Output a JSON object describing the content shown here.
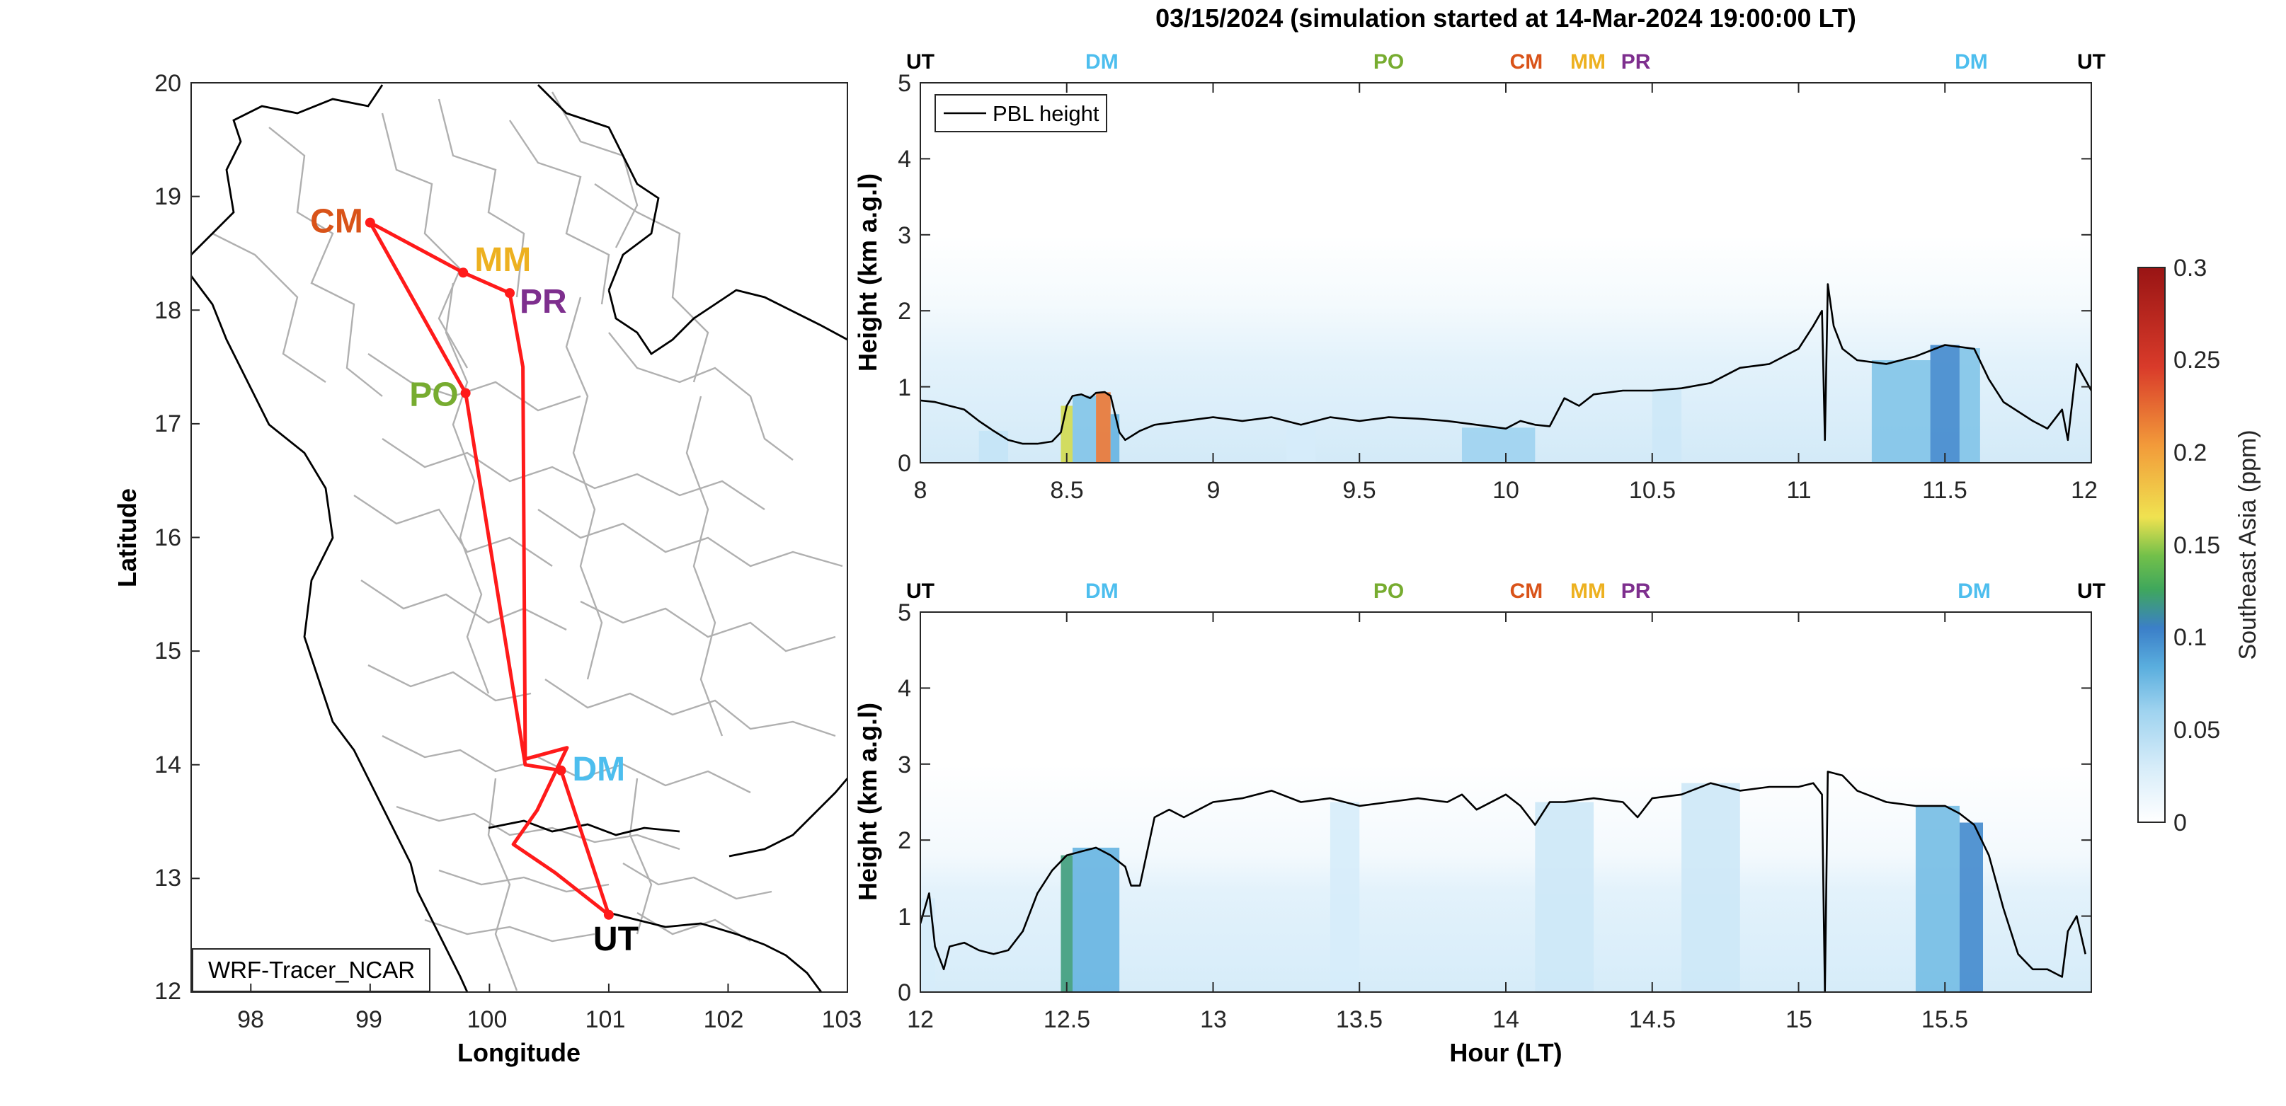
{
  "figure": {
    "title": "03/15/2024 (simulation started at 14-Mar-2024 19:00:00 LT)"
  },
  "colors": {
    "route": "#ff1a1a",
    "CM": "#d95319",
    "MM": "#edb120",
    "PR": "#7e2f8e",
    "PO": "#77ac30",
    "DM": "#4dbeee",
    "UT": "#000000",
    "colormap": [
      "#ffffff",
      "#d6ecf9",
      "#9fd3ef",
      "#5aaede",
      "#3b7fc8",
      "#3fa75c",
      "#72c04a",
      "#f0e250",
      "#f29a3a",
      "#d93b2a",
      "#991414"
    ]
  },
  "map": {
    "xlabel": "Longitude",
    "ylabel": "Latitude",
    "xticks": [
      "98",
      "99",
      "100",
      "101",
      "102",
      "103"
    ],
    "yticks": [
      "20",
      "19",
      "18",
      "17",
      "16",
      "15",
      "14",
      "13",
      "12"
    ],
    "model_label": "WRF-Tracer_NCAR",
    "stations": [
      {
        "code": "CM",
        "lon": 99.0,
        "lat": 18.77
      },
      {
        "code": "MM",
        "lon": 99.78,
        "lat": 18.33
      },
      {
        "code": "PR",
        "lon": 100.17,
        "lat": 18.15
      },
      {
        "code": "PO",
        "lon": 99.8,
        "lat": 17.27
      },
      {
        "code": "DM",
        "lon": 100.6,
        "lat": 13.95
      },
      {
        "code": "UT",
        "lon": 101.0,
        "lat": 12.68
      }
    ],
    "route": [
      [
        101.0,
        12.68
      ],
      [
        100.6,
        13.95
      ],
      [
        100.3,
        14.0
      ],
      [
        99.8,
        17.27
      ],
      [
        99.0,
        18.77
      ],
      [
        99.78,
        18.33
      ],
      [
        100.17,
        18.15
      ],
      [
        100.28,
        17.5
      ],
      [
        100.3,
        14.05
      ],
      [
        100.65,
        14.15
      ],
      [
        100.4,
        13.6
      ],
      [
        100.2,
        13.3
      ],
      [
        100.55,
        13.05
      ],
      [
        101.0,
        12.68
      ]
    ]
  },
  "chart_data": [
    {
      "type": "heatmap",
      "title": "",
      "xlabel": "",
      "ylabel": "Height (km a.g.l)",
      "xlim": [
        8,
        12
      ],
      "ylim": [
        0,
        5
      ],
      "xticks": [
        "8",
        "8.5",
        "9",
        "9.5",
        "10",
        "10.5",
        "11",
        "11.5",
        "12"
      ],
      "yticks": [
        "5",
        "4",
        "3",
        "2",
        "1",
        "0"
      ],
      "legend": {
        "label": "PBL height",
        "position": "top-left"
      },
      "location_markers": [
        {
          "code": "UT",
          "hour": 8.0
        },
        {
          "code": "DM",
          "hour": 8.62
        },
        {
          "code": "PO",
          "hour": 9.6
        },
        {
          "code": "CM",
          "hour": 10.07
        },
        {
          "code": "MM",
          "hour": 10.3
        },
        {
          "code": "PR",
          "hour": 10.41
        },
        {
          "code": "DM",
          "hour": 11.59
        },
        {
          "code": "UT",
          "hour": 11.97
        }
      ],
      "pbl_series": {
        "name": "PBL height",
        "x": [
          8.0,
          8.05,
          8.1,
          8.15,
          8.2,
          8.25,
          8.3,
          8.35,
          8.4,
          8.45,
          8.48,
          8.5,
          8.52,
          8.55,
          8.58,
          8.6,
          8.63,
          8.65,
          8.68,
          8.7,
          8.75,
          8.8,
          8.9,
          9.0,
          9.1,
          9.2,
          9.3,
          9.4,
          9.5,
          9.6,
          9.7,
          9.8,
          9.9,
          10.0,
          10.05,
          10.1,
          10.15,
          10.2,
          10.25,
          10.3,
          10.4,
          10.5,
          10.6,
          10.7,
          10.8,
          10.9,
          11.0,
          11.05,
          11.08,
          11.09,
          11.1,
          11.12,
          11.15,
          11.2,
          11.3,
          11.4,
          11.5,
          11.6,
          11.65,
          11.7,
          11.8,
          11.85,
          11.9,
          11.92,
          11.95,
          12.0
        ],
        "y": [
          0.82,
          0.8,
          0.75,
          0.7,
          0.55,
          0.42,
          0.3,
          0.25,
          0.25,
          0.28,
          0.4,
          0.75,
          0.88,
          0.9,
          0.85,
          0.92,
          0.93,
          0.88,
          0.4,
          0.3,
          0.42,
          0.5,
          0.55,
          0.6,
          0.55,
          0.6,
          0.5,
          0.6,
          0.55,
          0.6,
          0.58,
          0.55,
          0.5,
          0.45,
          0.55,
          0.5,
          0.48,
          0.85,
          0.75,
          0.9,
          0.95,
          0.95,
          0.98,
          1.05,
          1.25,
          1.3,
          1.5,
          1.8,
          2.0,
          0.3,
          2.35,
          1.8,
          1.5,
          1.35,
          1.3,
          1.4,
          1.55,
          1.5,
          1.1,
          0.8,
          0.55,
          0.45,
          0.7,
          0.3,
          1.3,
          0.95
        ]
      },
      "tracer_columns": [
        {
          "x0": 8.2,
          "x1": 8.3,
          "value": 0.04
        },
        {
          "x0": 8.48,
          "x1": 8.52,
          "value": 0.16
        },
        {
          "x0": 8.52,
          "x1": 8.6,
          "value": 0.07
        },
        {
          "x0": 8.6,
          "x1": 8.65,
          "value": 0.22
        },
        {
          "x0": 8.65,
          "x1": 8.68,
          "value": 0.08
        },
        {
          "x0": 9.25,
          "x1": 9.35,
          "value": 0.03
        },
        {
          "x0": 9.85,
          "x1": 10.1,
          "value": 0.06
        },
        {
          "x0": 10.5,
          "x1": 10.6,
          "value": 0.035
        },
        {
          "x0": 11.25,
          "x1": 11.45,
          "value": 0.07
        },
        {
          "x0": 11.45,
          "x1": 11.55,
          "value": 0.1
        },
        {
          "x0": 11.55,
          "x1": 11.62,
          "value": 0.07
        }
      ]
    },
    {
      "type": "heatmap",
      "title": "",
      "xlabel": "Hour (LT)",
      "ylabel": "Height (km a.g.l)",
      "xlim": [
        12,
        16
      ],
      "ylim": [
        0,
        5
      ],
      "xticks": [
        "12",
        "12.5",
        "13",
        "13.5",
        "14",
        "14.5",
        "15",
        "15.5"
      ],
      "yticks": [
        "5",
        "4",
        "3",
        "2",
        "1",
        "0"
      ],
      "location_markers": [
        {
          "code": "UT",
          "hour": 12.0
        },
        {
          "code": "DM",
          "hour": 12.62
        },
        {
          "code": "PO",
          "hour": 13.6
        },
        {
          "code": "CM",
          "hour": 14.07
        },
        {
          "code": "MM",
          "hour": 14.3
        },
        {
          "code": "PR",
          "hour": 14.41
        },
        {
          "code": "DM",
          "hour": 15.6
        },
        {
          "code": "UT",
          "hour": 15.97
        }
      ],
      "pbl_series": {
        "name": "PBL height",
        "x": [
          12.0,
          12.03,
          12.05,
          12.08,
          12.1,
          12.15,
          12.2,
          12.25,
          12.3,
          12.35,
          12.4,
          12.45,
          12.5,
          12.55,
          12.6,
          12.65,
          12.7,
          12.72,
          12.75,
          12.8,
          12.85,
          12.9,
          13.0,
          13.1,
          13.2,
          13.3,
          13.4,
          13.5,
          13.6,
          13.7,
          13.8,
          13.85,
          13.9,
          14.0,
          14.05,
          14.1,
          14.15,
          14.2,
          14.3,
          14.4,
          14.45,
          14.5,
          14.6,
          14.7,
          14.8,
          14.9,
          15.0,
          15.05,
          15.08,
          15.09,
          15.1,
          15.15,
          15.2,
          15.3,
          15.4,
          15.5,
          15.55,
          15.6,
          15.65,
          15.7,
          15.75,
          15.8,
          15.85,
          15.9,
          15.92,
          15.95,
          15.98
        ],
        "y": [
          0.9,
          1.3,
          0.6,
          0.3,
          0.6,
          0.65,
          0.55,
          0.5,
          0.55,
          0.8,
          1.3,
          1.6,
          1.8,
          1.85,
          1.9,
          1.8,
          1.65,
          1.4,
          1.4,
          2.3,
          2.4,
          2.3,
          2.5,
          2.55,
          2.65,
          2.5,
          2.55,
          2.45,
          2.5,
          2.55,
          2.5,
          2.6,
          2.4,
          2.6,
          2.45,
          2.2,
          2.5,
          2.5,
          2.55,
          2.5,
          2.3,
          2.55,
          2.6,
          2.75,
          2.65,
          2.7,
          2.7,
          2.75,
          2.6,
          0.0,
          2.9,
          2.85,
          2.65,
          2.5,
          2.45,
          2.45,
          2.35,
          2.2,
          1.8,
          1.1,
          0.5,
          0.3,
          0.3,
          0.2,
          0.8,
          1.0,
          0.5
        ]
      },
      "tracer_columns": [
        {
          "x0": 12.0,
          "x1": 12.05,
          "value": 0.03
        },
        {
          "x0": 12.48,
          "x1": 12.52,
          "value": 0.12
        },
        {
          "x0": 12.52,
          "x1": 12.68,
          "value": 0.08
        },
        {
          "x0": 13.4,
          "x1": 13.5,
          "value": 0.03
        },
        {
          "x0": 14.1,
          "x1": 14.3,
          "value": 0.035
        },
        {
          "x0": 14.6,
          "x1": 14.8,
          "value": 0.035
        },
        {
          "x0": 15.4,
          "x1": 15.55,
          "value": 0.075
        },
        {
          "x0": 15.55,
          "x1": 15.63,
          "value": 0.1
        }
      ]
    }
  ],
  "colorbar": {
    "label": "Southeast Asia (ppm)",
    "ticks": [
      "0.3",
      "0.25",
      "0.2",
      "0.15",
      "0.1",
      "0.05",
      "0"
    ],
    "range": [
      0,
      0.3
    ]
  }
}
